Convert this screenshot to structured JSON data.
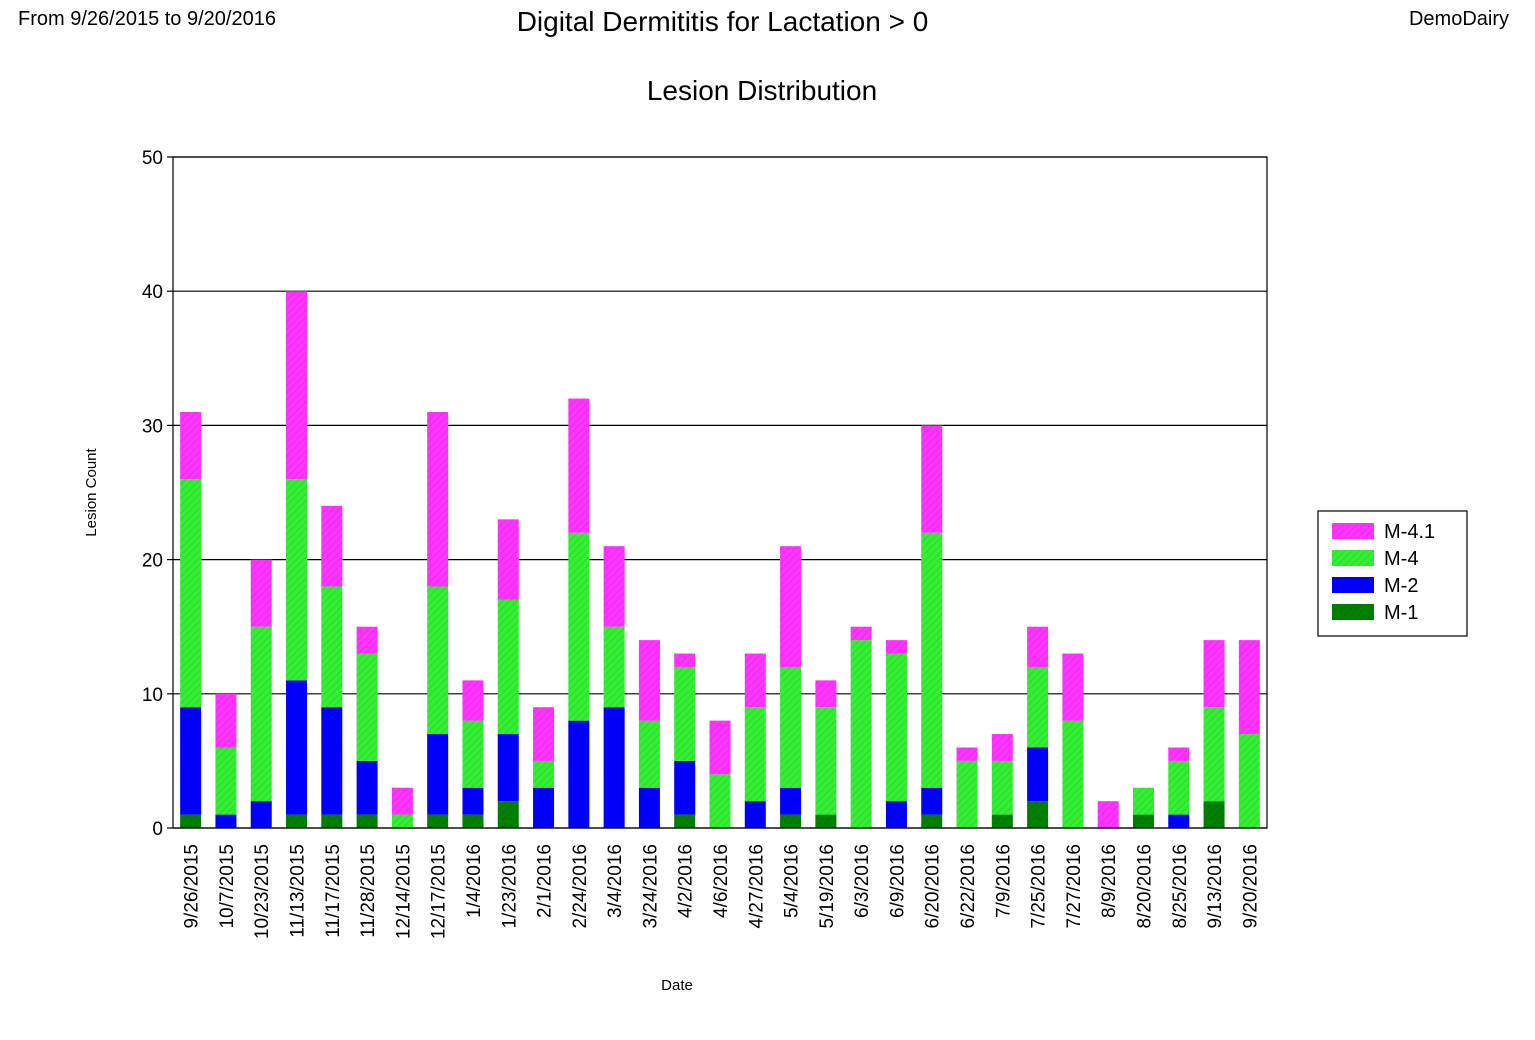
{
  "header": {
    "date_range": "From 9/26/2015 to 9/20/2016",
    "report_title": "Digital Dermititis for Lactation > 0",
    "dairy_name": "DemoDairy"
  },
  "chart_data": {
    "type": "bar",
    "stacked": true,
    "title": "Lesion Distribution",
    "xlabel": "Date",
    "ylabel": "Lesion Count",
    "ylim": [
      0,
      50
    ],
    "yticks": [
      0,
      10,
      20,
      30,
      40,
      50
    ],
    "grid": true,
    "legend_position": "right",
    "categories": [
      "9/26/2015",
      "10/7/2015",
      "10/23/2015",
      "11/13/2015",
      "11/17/2015",
      "11/28/2015",
      "12/14/2015",
      "12/17/2015",
      "1/4/2016",
      "1/23/2016",
      "2/1/2016",
      "2/24/2016",
      "3/4/2016",
      "3/24/2016",
      "4/2/2016",
      "4/6/2016",
      "4/27/2016",
      "5/4/2016",
      "5/19/2016",
      "6/3/2016",
      "6/9/2016",
      "6/20/2016",
      "6/22/2016",
      "7/9/2016",
      "7/25/2016",
      "7/27/2016",
      "8/9/2016",
      "8/20/2016",
      "8/25/2016",
      "9/13/2016",
      "9/20/2016"
    ],
    "series": [
      {
        "name": "M-1",
        "color": "#008000",
        "values": [
          1,
          0,
          0,
          1,
          1,
          1,
          0,
          1,
          1,
          2,
          0,
          0,
          0,
          0,
          1,
          0,
          0,
          1,
          1,
          0,
          0,
          1,
          0,
          1,
          2,
          0,
          0,
          1,
          0,
          2,
          0
        ]
      },
      {
        "name": "M-2",
        "color": "#0000ff",
        "values": [
          8,
          1,
          2,
          10,
          8,
          4,
          0,
          6,
          2,
          5,
          3,
          8,
          9,
          3,
          4,
          0,
          2,
          2,
          0,
          0,
          2,
          2,
          0,
          0,
          4,
          0,
          0,
          0,
          1,
          0,
          0
        ]
      },
      {
        "name": "M-4",
        "color": "#33ee33",
        "values": [
          17,
          5,
          13,
          15,
          9,
          8,
          1,
          11,
          5,
          10,
          2,
          14,
          6,
          5,
          7,
          4,
          7,
          9,
          8,
          14,
          11,
          19,
          5,
          4,
          6,
          8,
          0,
          2,
          4,
          7,
          7
        ]
      },
      {
        "name": "M-4.1",
        "color": "#ff33ff",
        "values": [
          5,
          4,
          5,
          14,
          6,
          2,
          2,
          13,
          3,
          6,
          4,
          10,
          6,
          6,
          1,
          4,
          4,
          9,
          2,
          1,
          1,
          8,
          1,
          2,
          3,
          5,
          2,
          0,
          1,
          5,
          7
        ]
      }
    ]
  }
}
